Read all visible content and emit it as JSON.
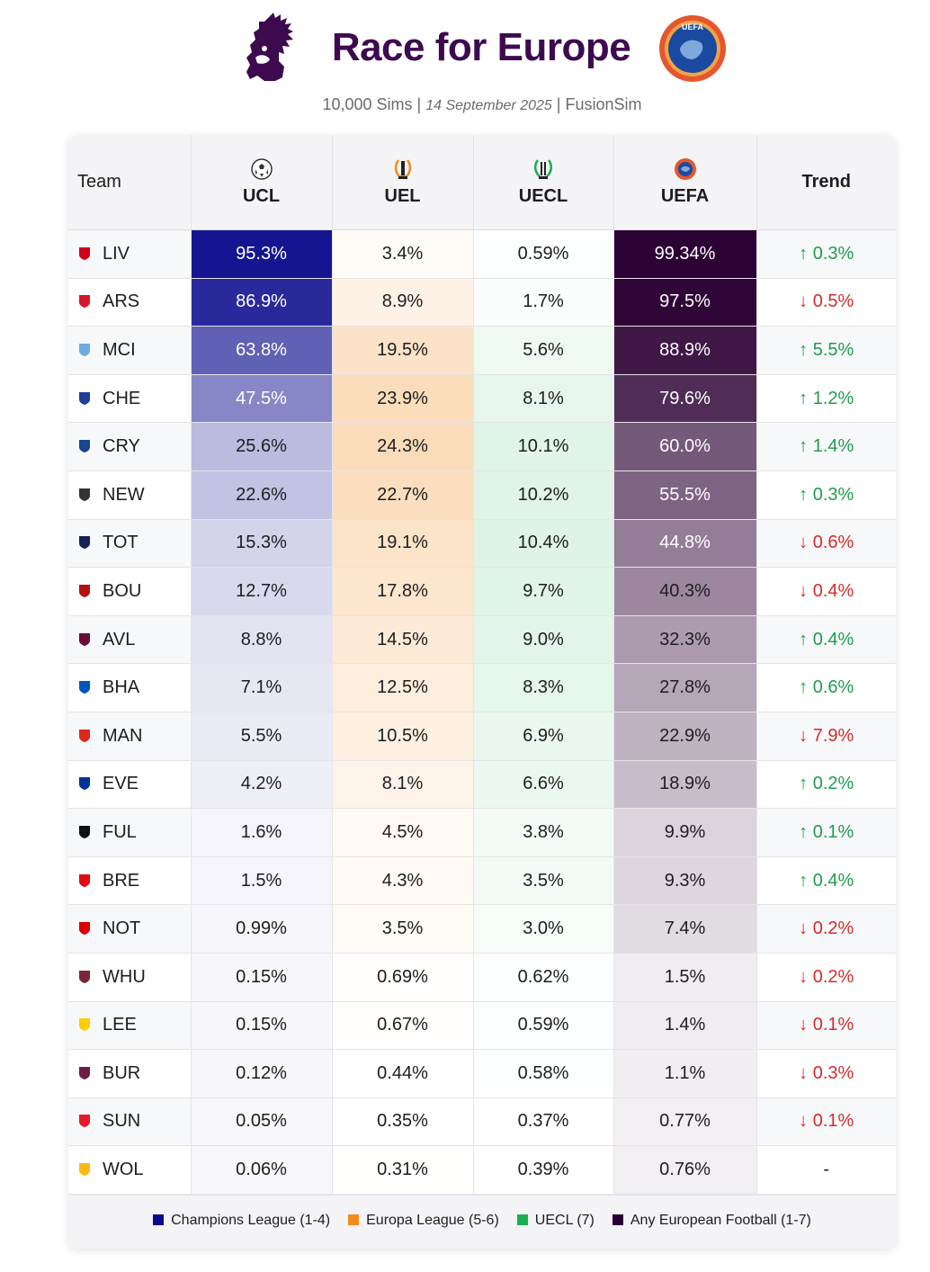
{
  "header": {
    "title": "Race for Europe",
    "sims": "10,000 Sims",
    "sep1": " | ",
    "date": "14 September 2025",
    "sep2": " | ",
    "source": "FusionSim",
    "uefa_logo_text": "UEFA"
  },
  "colors": {
    "ucl": "#0a0a8c",
    "uel": "#f28b1a",
    "uecl": "#1aae4f",
    "uefa": "#2b0033",
    "title": "#3d0a4f",
    "up": "#1f9d4a",
    "down": "#d62b2b"
  },
  "chart_data": {
    "type": "table",
    "title": "Race for Europe",
    "columns": [
      "Team",
      "UCL",
      "UEL",
      "UECL",
      "UEFA",
      "Trend"
    ],
    "rows": [
      {
        "team": "LIV",
        "ucl": "95.3%",
        "uel": "3.4%",
        "uecl": "0.59%",
        "uefa": "99.34%",
        "trend": "↑ 0.3%",
        "dir": "up",
        "v": [
          95.3,
          3.4,
          0.59,
          99.34
        ]
      },
      {
        "team": "ARS",
        "ucl": "86.9%",
        "uel": "8.9%",
        "uecl": "1.7%",
        "uefa": "97.5%",
        "trend": "↓ 0.5%",
        "dir": "down",
        "v": [
          86.9,
          8.9,
          1.7,
          97.5
        ]
      },
      {
        "team": "MCI",
        "ucl": "63.8%",
        "uel": "19.5%",
        "uecl": "5.6%",
        "uefa": "88.9%",
        "trend": "↑ 5.5%",
        "dir": "up",
        "v": [
          63.8,
          19.5,
          5.6,
          88.9
        ]
      },
      {
        "team": "CHE",
        "ucl": "47.5%",
        "uel": "23.9%",
        "uecl": "8.1%",
        "uefa": "79.6%",
        "trend": "↑ 1.2%",
        "dir": "up",
        "v": [
          47.5,
          23.9,
          8.1,
          79.6
        ]
      },
      {
        "team": "CRY",
        "ucl": "25.6%",
        "uel": "24.3%",
        "uecl": "10.1%",
        "uefa": "60.0%",
        "trend": "↑ 1.4%",
        "dir": "up",
        "v": [
          25.6,
          24.3,
          10.1,
          60.0
        ]
      },
      {
        "team": "NEW",
        "ucl": "22.6%",
        "uel": "22.7%",
        "uecl": "10.2%",
        "uefa": "55.5%",
        "trend": "↑ 0.3%",
        "dir": "up",
        "v": [
          22.6,
          22.7,
          10.2,
          55.5
        ]
      },
      {
        "team": "TOT",
        "ucl": "15.3%",
        "uel": "19.1%",
        "uecl": "10.4%",
        "uefa": "44.8%",
        "trend": "↓ 0.6%",
        "dir": "down",
        "v": [
          15.3,
          19.1,
          10.4,
          44.8
        ]
      },
      {
        "team": "BOU",
        "ucl": "12.7%",
        "uel": "17.8%",
        "uecl": "9.7%",
        "uefa": "40.3%",
        "trend": "↓ 0.4%",
        "dir": "down",
        "v": [
          12.7,
          17.8,
          9.7,
          40.3
        ]
      },
      {
        "team": "AVL",
        "ucl": "8.8%",
        "uel": "14.5%",
        "uecl": "9.0%",
        "uefa": "32.3%",
        "trend": "↑ 0.4%",
        "dir": "up",
        "v": [
          8.8,
          14.5,
          9.0,
          32.3
        ]
      },
      {
        "team": "BHA",
        "ucl": "7.1%",
        "uel": "12.5%",
        "uecl": "8.3%",
        "uefa": "27.8%",
        "trend": "↑ 0.6%",
        "dir": "up",
        "v": [
          7.1,
          12.5,
          8.3,
          27.8
        ]
      },
      {
        "team": "MAN",
        "ucl": "5.5%",
        "uel": "10.5%",
        "uecl": "6.9%",
        "uefa": "22.9%",
        "trend": "↓ 7.9%",
        "dir": "down",
        "v": [
          5.5,
          10.5,
          6.9,
          22.9
        ]
      },
      {
        "team": "EVE",
        "ucl": "4.2%",
        "uel": "8.1%",
        "uecl": "6.6%",
        "uefa": "18.9%",
        "trend": "↑ 0.2%",
        "dir": "up",
        "v": [
          4.2,
          8.1,
          6.6,
          18.9
        ]
      },
      {
        "team": "FUL",
        "ucl": "1.6%",
        "uel": "4.5%",
        "uecl": "3.8%",
        "uefa": "9.9%",
        "trend": "↑ 0.1%",
        "dir": "up",
        "v": [
          1.6,
          4.5,
          3.8,
          9.9
        ]
      },
      {
        "team": "BRE",
        "ucl": "1.5%",
        "uel": "4.3%",
        "uecl": "3.5%",
        "uefa": "9.3%",
        "trend": "↑ 0.4%",
        "dir": "up",
        "v": [
          1.5,
          4.3,
          3.5,
          9.3
        ]
      },
      {
        "team": "NOT",
        "ucl": "0.99%",
        "uel": "3.5%",
        "uecl": "3.0%",
        "uefa": "7.4%",
        "trend": "↓ 0.2%",
        "dir": "down",
        "v": [
          0.99,
          3.5,
          3.0,
          7.4
        ]
      },
      {
        "team": "WHU",
        "ucl": "0.15%",
        "uel": "0.69%",
        "uecl": "0.62%",
        "uefa": "1.5%",
        "trend": "↓ 0.2%",
        "dir": "down",
        "v": [
          0.15,
          0.69,
          0.62,
          1.5
        ]
      },
      {
        "team": "LEE",
        "ucl": "0.15%",
        "uel": "0.67%",
        "uecl": "0.59%",
        "uefa": "1.4%",
        "trend": "↓ 0.1%",
        "dir": "down",
        "v": [
          0.15,
          0.67,
          0.59,
          1.4
        ]
      },
      {
        "team": "BUR",
        "ucl": "0.12%",
        "uel": "0.44%",
        "uecl": "0.58%",
        "uefa": "1.1%",
        "trend": "↓ 0.3%",
        "dir": "down",
        "v": [
          0.12,
          0.44,
          0.58,
          1.1
        ]
      },
      {
        "team": "SUN",
        "ucl": "0.05%",
        "uel": "0.35%",
        "uecl": "0.37%",
        "uefa": "0.77%",
        "trend": "↓ 0.1%",
        "dir": "down",
        "v": [
          0.05,
          0.35,
          0.37,
          0.77
        ]
      },
      {
        "team": "WOL",
        "ucl": "0.06%",
        "uel": "0.31%",
        "uecl": "0.39%",
        "uefa": "0.76%",
        "trend": "-",
        "dir": "flat",
        "v": [
          0.06,
          0.31,
          0.39,
          0.76
        ]
      }
    ],
    "legend": [
      {
        "label": "Champions League (1-4)",
        "color": "#0a0a8c"
      },
      {
        "label": "Europa League (5-6)",
        "color": "#f28b1a"
      },
      {
        "label": "UECL (7)",
        "color": "#1aae4f"
      },
      {
        "label": "Any European Football (1-7)",
        "color": "#2b0033"
      }
    ]
  },
  "table_header": {
    "team": "Team",
    "ucl": "UCL",
    "uel": "UEL",
    "uecl": "UECL",
    "uefa": "UEFA",
    "trend": "Trend"
  },
  "badge_colors": [
    "#d0021b",
    "#d8152b",
    "#6cabdd",
    "#1f3d99",
    "#1b458f",
    "#333333",
    "#132257",
    "#b50e12",
    "#670e36",
    "#0057b8",
    "#da291c",
    "#003399",
    "#111111",
    "#e30613",
    "#dd0000",
    "#7a263a",
    "#ffcd00",
    "#6c1d45",
    "#eb172b",
    "#fdb913"
  ]
}
